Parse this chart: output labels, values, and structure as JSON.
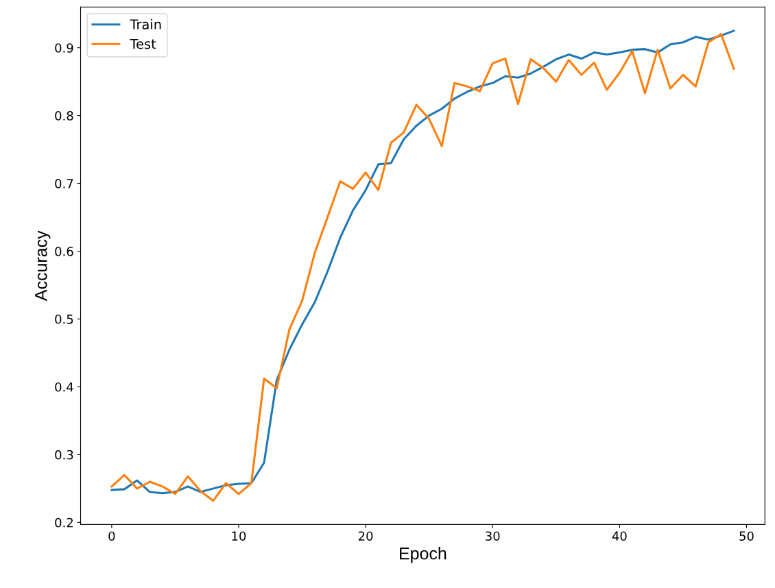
{
  "chart_data": {
    "type": "line",
    "xlabel": "Epoch",
    "ylabel": "Accuracy",
    "x": [
      0,
      1,
      2,
      3,
      4,
      5,
      6,
      7,
      8,
      9,
      10,
      11,
      12,
      13,
      14,
      15,
      16,
      17,
      18,
      19,
      20,
      21,
      22,
      23,
      24,
      25,
      26,
      27,
      28,
      29,
      30,
      31,
      32,
      33,
      34,
      35,
      36,
      37,
      38,
      39,
      40,
      41,
      42,
      43,
      44,
      45,
      46,
      47,
      48,
      49
    ],
    "series": [
      {
        "name": "Train",
        "color": "#1f77b4",
        "values": [
          0.248,
          0.249,
          0.262,
          0.245,
          0.243,
          0.245,
          0.253,
          0.245,
          0.25,
          0.255,
          0.257,
          0.258,
          0.288,
          0.41,
          0.455,
          0.492,
          0.525,
          0.57,
          0.62,
          0.66,
          0.69,
          0.728,
          0.73,
          0.765,
          0.785,
          0.8,
          0.81,
          0.825,
          0.835,
          0.843,
          0.848,
          0.858,
          0.856,
          0.862,
          0.872,
          0.883,
          0.89,
          0.884,
          0.893,
          0.89,
          0.893,
          0.897,
          0.898,
          0.893,
          0.905,
          0.908,
          0.916,
          0.912,
          0.918,
          0.925
        ]
      },
      {
        "name": "Test",
        "color": "#ff7f0e",
        "values": [
          0.253,
          0.27,
          0.25,
          0.26,
          0.253,
          0.242,
          0.268,
          0.246,
          0.232,
          0.258,
          0.242,
          0.258,
          0.412,
          0.398,
          0.485,
          0.527,
          0.598,
          0.65,
          0.703,
          0.692,
          0.716,
          0.69,
          0.76,
          0.775,
          0.816,
          0.795,
          0.755,
          0.848,
          0.843,
          0.836,
          0.877,
          0.884,
          0.817,
          0.883,
          0.87,
          0.85,
          0.882,
          0.86,
          0.878,
          0.838,
          0.863,
          0.895,
          0.833,
          0.897,
          0.84,
          0.86,
          0.843,
          0.908,
          0.92,
          0.869
        ]
      }
    ],
    "xlim": [
      -2.45,
      51.45
    ],
    "xticks": [
      0,
      10,
      20,
      30,
      40,
      50
    ],
    "ylim": [
      0.197,
      0.96
    ],
    "yticks": [
      0.2,
      0.3,
      0.4,
      0.5,
      0.6,
      0.7,
      0.8,
      0.9
    ],
    "grid": false,
    "legend": "top left",
    "marker": "none",
    "line_style": "solid"
  }
}
